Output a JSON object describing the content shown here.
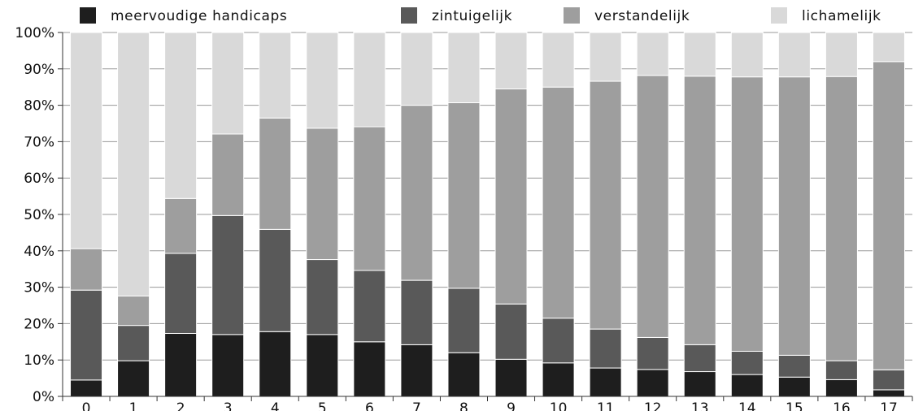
{
  "chart_data": {
    "type": "bar",
    "stacked": true,
    "categories": [
      "0",
      "1",
      "2",
      "3",
      "4",
      "5",
      "6",
      "7",
      "8",
      "9",
      "10",
      "11",
      "12",
      "13",
      "14",
      "15",
      "16",
      "17"
    ],
    "series": [
      {
        "name": "meervoudige handicaps",
        "color": "#1e1e1e",
        "values": [
          4.5,
          9.8,
          17.3,
          17.0,
          17.8,
          17.0,
          15.0,
          14.2,
          12.0,
          10.2,
          9.2,
          7.8,
          7.4,
          6.8,
          6.0,
          5.3,
          4.6,
          1.8
        ]
      },
      {
        "name": "zintuigelijk",
        "color": "#595959",
        "values": [
          24.7,
          9.7,
          22.0,
          32.7,
          28.1,
          20.6,
          19.6,
          17.7,
          17.7,
          15.2,
          12.3,
          10.7,
          8.8,
          7.4,
          6.4,
          6.0,
          5.2,
          5.5
        ]
      },
      {
        "name": "verstandelijk",
        "color": "#9e9e9e",
        "values": [
          11.4,
          8.1,
          15.1,
          22.4,
          30.6,
          36.1,
          39.5,
          48.1,
          51.0,
          59.1,
          63.5,
          68.1,
          72.0,
          73.8,
          75.4,
          76.5,
          78.1,
          84.7
        ]
      },
      {
        "name": "lichamelijk",
        "color": "#d9d9d9",
        "values": [
          59.4,
          72.4,
          45.6,
          27.9,
          23.5,
          26.3,
          25.9,
          20.0,
          19.3,
          15.5,
          15.0,
          13.4,
          11.8,
          12.0,
          12.2,
          12.2,
          12.1,
          8.0
        ]
      }
    ],
    "y_ticks": [
      "0%",
      "10%",
      "20%",
      "30%",
      "40%",
      "50%",
      "60%",
      "70%",
      "80%",
      "90%",
      "100%"
    ],
    "ylim": [
      0,
      100
    ],
    "grid": true,
    "legend": "top"
  }
}
